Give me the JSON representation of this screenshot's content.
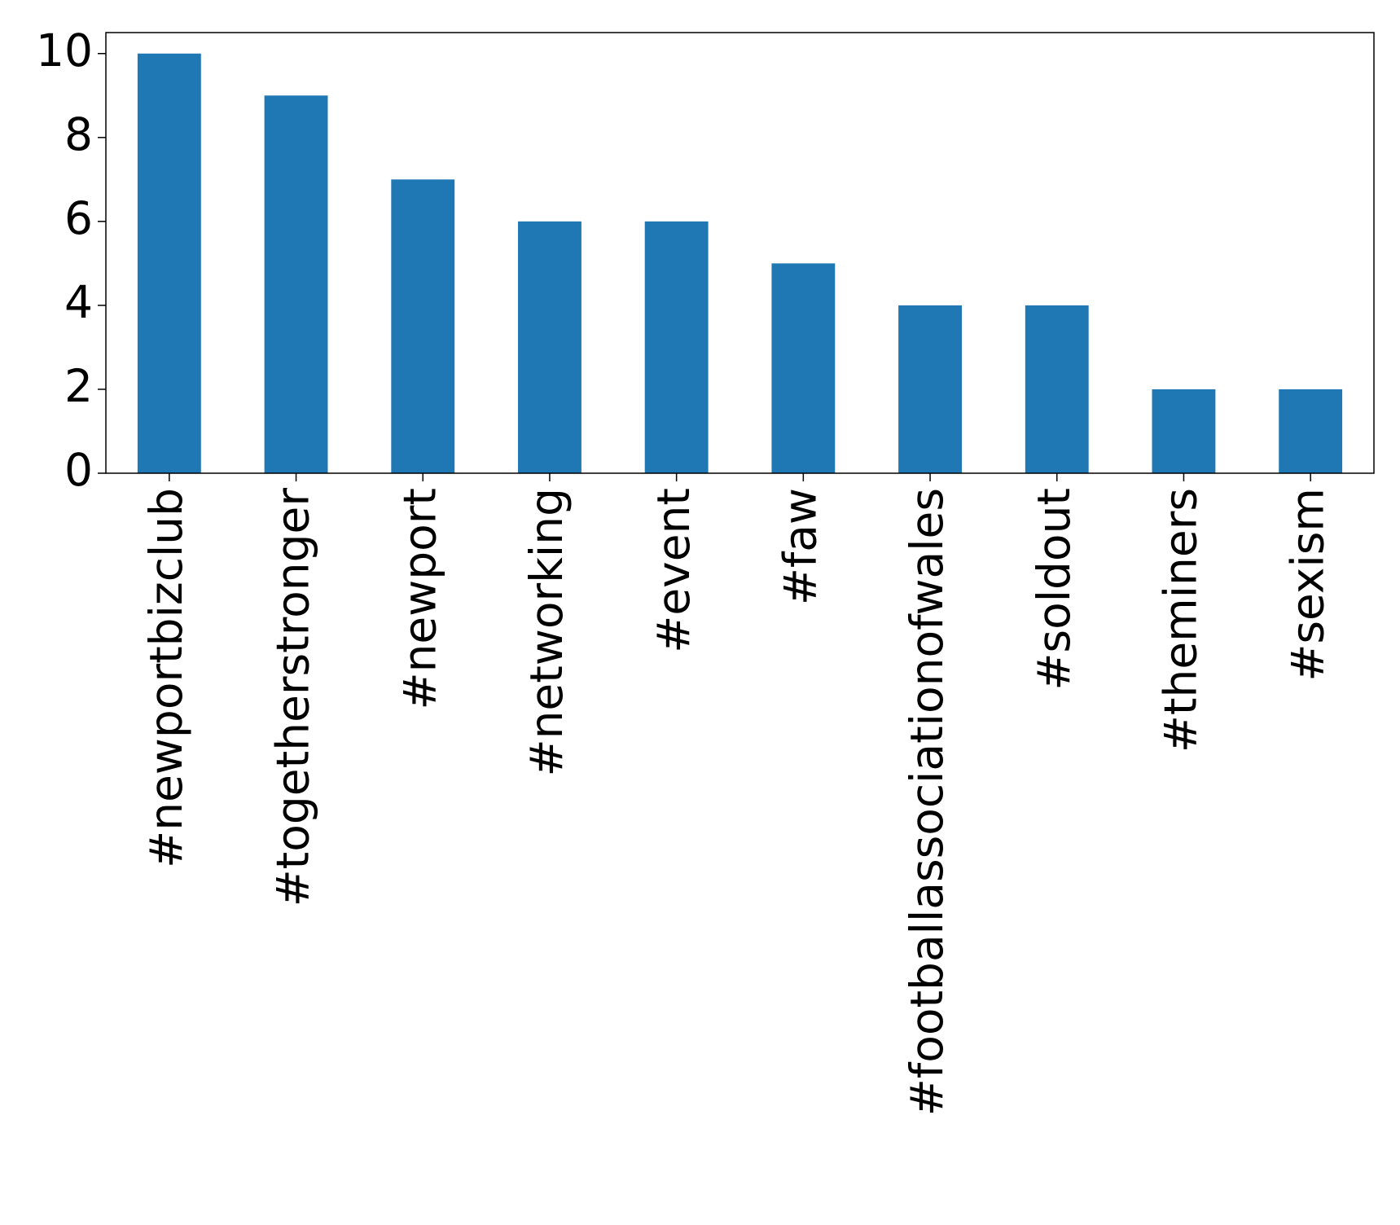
{
  "chart_data": {
    "type": "bar",
    "categories": [
      "#newportbizclub",
      "#togetherstronger",
      "#newport",
      "#networking",
      "#event",
      "#faw",
      "#footballassociationofwales",
      "#soldout",
      "#theminers",
      "#sexism"
    ],
    "values": [
      10,
      9,
      7,
      6,
      6,
      5,
      4,
      4,
      2,
      2
    ],
    "color": "#1f77b4",
    "ylim": [
      0,
      10.5
    ],
    "yticks": [
      0,
      2,
      4,
      6,
      8,
      10
    ],
    "grid": false
  }
}
